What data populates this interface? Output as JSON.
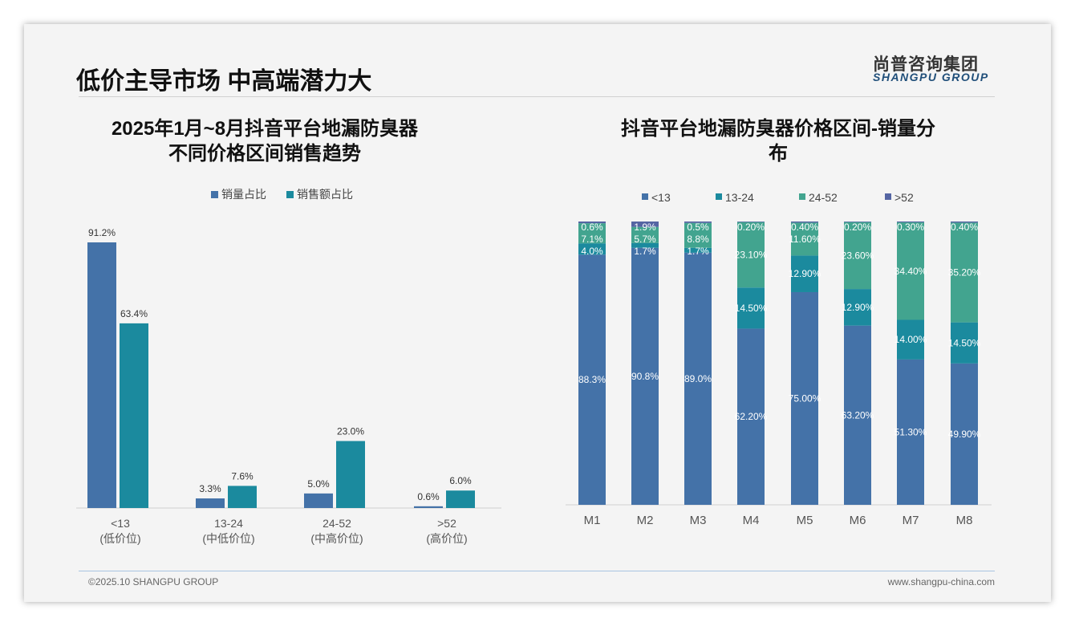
{
  "header": {
    "title": "低价主导市场 中高端潜力大",
    "logo_cn": "尚普咨询集团",
    "logo_en": "SHANGPU GROUP"
  },
  "footer": {
    "copyright": "©2025.10 SHANGPU GROUP",
    "website": "www.shangpu-china.com"
  },
  "colors": {
    "blue": "#4472a8",
    "teal": "#1b8a9e",
    "green": "#42a48f",
    "purple": "#5565a3"
  },
  "chart_data": [
    {
      "type": "bar",
      "title_line1": "2025年1月~8月抖音平台地漏防臭器",
      "title_line2": "不同价格区间销售趋势",
      "categories": [
        "<13",
        "13-24",
        "24-52",
        ">52"
      ],
      "category_sublabels": [
        "(低价位)",
        "(中低价位)",
        "(中高价位)",
        "(高价位)"
      ],
      "series": [
        {
          "name": "销量占比",
          "color": "#4472a8",
          "values": [
            91.2,
            3.3,
            5.0,
            0.6
          ]
        },
        {
          "name": "销售额占比",
          "color": "#1b8a9e",
          "values": [
            63.4,
            7.6,
            23.0,
            6.0
          ]
        }
      ],
      "unit": "%",
      "legend": "top-center",
      "ylim": [
        0,
        100
      ]
    },
    {
      "type": "bar",
      "stacked": true,
      "title_line1": "抖音平台地漏防臭器价格区间-销量分",
      "title_line2": "布",
      "categories": [
        "M1",
        "M2",
        "M3",
        "M4",
        "M5",
        "M6",
        "M7",
        "M8"
      ],
      "series": [
        {
          "name": "<13",
          "color": "#4472a8",
          "values": [
            88.3,
            90.8,
            89.0,
            62.2,
            75.0,
            63.2,
            51.3,
            49.9
          ],
          "decimals": [
            1,
            1,
            1,
            2,
            2,
            2,
            2,
            2
          ]
        },
        {
          "name": "13-24",
          "color": "#1b8a9e",
          "values": [
            4.0,
            1.7,
            1.7,
            14.5,
            12.9,
            12.9,
            14.0,
            14.5
          ],
          "decimals": [
            1,
            1,
            1,
            2,
            2,
            2,
            2,
            2
          ]
        },
        {
          "name": "24-52",
          "color": "#42a48f",
          "values": [
            7.1,
            5.7,
            8.8,
            23.1,
            11.6,
            23.6,
            34.4,
            35.2
          ],
          "decimals": [
            1,
            1,
            1,
            2,
            2,
            2,
            2,
            2
          ]
        },
        {
          "name": ">52",
          "color": "#5565a3",
          "values": [
            0.6,
            1.9,
            0.5,
            0.2,
            0.4,
            0.2,
            0.3,
            0.4
          ],
          "decimals": [
            1,
            1,
            1,
            2,
            2,
            2,
            2,
            2
          ]
        }
      ],
      "unit": "%",
      "legend": "top-center",
      "ylim": [
        0,
        100
      ]
    }
  ]
}
